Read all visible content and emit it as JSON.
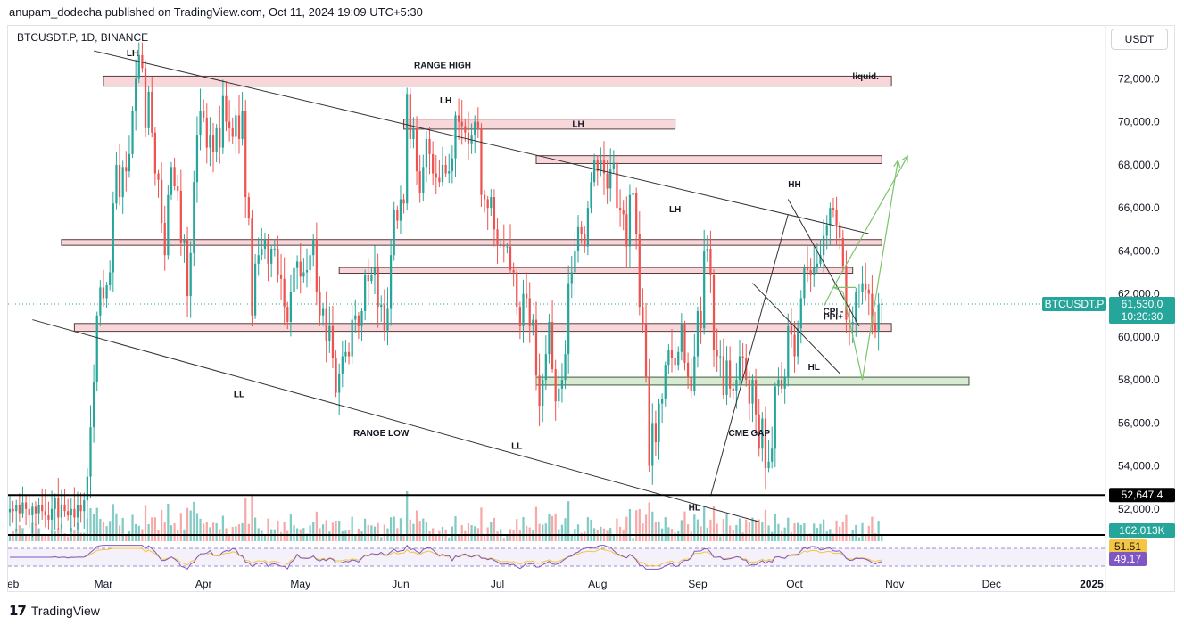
{
  "header": {
    "published_text": "anupam_dodecha published on TradingView.com, Oct 11, 2024 19:09 UTC+5:30"
  },
  "footer": {
    "brand": "TradingView",
    "brand_mark": "17"
  },
  "colors": {
    "up": "#26a69a",
    "down": "#ef5350",
    "volume_up": "#80cbc4",
    "volume_down": "#f7a9a7",
    "zone_pink_fill": "#f8d7da",
    "zone_green_fill": "#d8ead2",
    "projection_green": "#7cc36b",
    "rsi_line": "#7e57c2",
    "rsi_ma": "#f4c542"
  },
  "chart_data": {
    "type": "candlestick",
    "symbol_label": "BTCUSDT.P, 1D, BINANCE",
    "unit_label": "USDT",
    "ylim": [
      50500,
      73800
    ],
    "y_ticks": [
      52000,
      54000,
      56000,
      58000,
      60000,
      62000,
      64000,
      66000,
      68000,
      70000,
      72000
    ],
    "y_tick_labels": [
      "52,000.0",
      "54,000.0",
      "56,000.0",
      "58,000.0",
      "60,000.0",
      "62,000.0",
      "64,000.0",
      "66,000.0",
      "68,000.0",
      "70,000.0",
      "72,000.0"
    ],
    "x_labels": [
      "Feb",
      "Mar",
      "Apr",
      "May",
      "Jun",
      "Jul",
      "Aug",
      "Sep",
      "Oct",
      "Nov",
      "Dec",
      "2025"
    ],
    "x_label_dates": [
      "2024-02-01",
      "2024-03-01",
      "2024-04-01",
      "2024-05-01",
      "2024-06-01",
      "2024-07-01",
      "2024-08-01",
      "2024-09-01",
      "2024-10-01",
      "2024-11-01",
      "2024-12-01",
      "2025-01-01"
    ],
    "x_range_dates": [
      "2024-02-01",
      "2025-01-05"
    ],
    "candle_first_date": "2024-02-01",
    "closes": [
      52000,
      51900,
      52200,
      51800,
      52300,
      52000,
      51700,
      52100,
      51800,
      52200,
      51900,
      51700,
      51500,
      52000,
      52500,
      51600,
      52200,
      51900,
      51700,
      52000,
      51600,
      52200,
      51900,
      52400,
      53500,
      55800,
      57900,
      61000,
      62300,
      61800,
      62400,
      63000,
      66200,
      68000,
      66500,
      67900,
      67700,
      68500,
      70500,
      72000,
      73100,
      72500,
      69700,
      71400,
      69500,
      67600,
      67300,
      65300,
      63800,
      66600,
      67900,
      67000,
      66800,
      64400,
      64500,
      61900,
      63900,
      67200,
      69400,
      70500,
      70200,
      68800,
      69400,
      68600,
      69700,
      68800,
      71200,
      70000,
      69700,
      69300,
      70300,
      69200,
      70500,
      66500,
      65500,
      61000,
      63400,
      63800,
      64100,
      64500,
      63400,
      64100,
      64100,
      62900,
      62700,
      61400,
      60700,
      62100,
      63200,
      63500,
      62800,
      63000,
      63100,
      63800,
      64500,
      62100,
      61000,
      61300,
      59800,
      60500,
      59000,
      57400,
      58300,
      59100,
      59300,
      59100,
      60800,
      61000,
      60500,
      61200,
      62900,
      62600,
      62900,
      63200,
      61400,
      61500,
      60300,
      61300,
      63800,
      65900,
      65400,
      66400,
      66200,
      71300,
      69200,
      69700,
      67700,
      66700,
      67900,
      69200,
      68500,
      67600,
      67400,
      67200,
      68000,
      67600,
      67700,
      68300,
      70300,
      70000,
      69800,
      69500,
      69000,
      69400,
      70000,
      69700,
      66600,
      66400,
      66000,
      66500,
      65000,
      64300,
      64300,
      64200,
      64200,
      63100,
      63000,
      61400,
      60500,
      62000,
      61800,
      60500,
      60800,
      58200,
      56800,
      58000,
      59200,
      60700,
      58500,
      57000,
      57600,
      58000,
      59200,
      62500,
      63000,
      64000,
      65100,
      64800,
      64200,
      66000,
      67200,
      68200,
      67700,
      68200,
      67600,
      66900,
      67800,
      68100,
      66000,
      65900,
      65700,
      64200,
      66600,
      66700,
      64800,
      61400,
      60600,
      58100,
      54000,
      56000,
      55100,
      56900,
      57100,
      58700,
      59400,
      59000,
      58700,
      59300,
      60600,
      58800,
      58100,
      57500,
      59100,
      61200,
      60400,
      64000,
      64100,
      62900,
      59400,
      59100,
      59100,
      57300,
      58900,
      57600,
      57500,
      58000,
      59100,
      59000,
      58000,
      56900,
      58000,
      56400,
      54800,
      56200,
      53900,
      54200,
      54800,
      57700,
      58000,
      57600,
      58100,
      60500,
      60100,
      59100,
      60400,
      61800,
      63200,
      63100,
      62900,
      63200,
      63400,
      63800,
      64700,
      65200,
      66000,
      65900,
      65200,
      64600,
      63300,
      60800,
      60600,
      60700,
      62100,
      62100,
      62500,
      62200,
      62000,
      60600,
      60300,
      61500,
      61530
    ],
    "volume_max_label": "102.013K",
    "horizontal_levels": [
      52647.4,
      51300
    ],
    "level_labels": [
      "52,647.4"
    ],
    "current_price_label": "61,530.0",
    "current_symbol_label": "BTCUSDT.P",
    "countdown_label": "10:20:30",
    "current_price": 61530,
    "rsi_label": "49.17",
    "rsi_ma_label": "51.51",
    "zones": [
      {
        "kind": "pink",
        "from": "2024-03-01",
        "to": "2024-10-31",
        "low": 71700,
        "high": 72000
      },
      {
        "kind": "pink",
        "from": "2024-06-02",
        "to": "2024-08-25",
        "low": 69700,
        "high": 70000
      },
      {
        "kind": "pink",
        "from": "2024-07-13",
        "to": "2024-10-28",
        "low": 68100,
        "high": 68300
      },
      {
        "kind": "pink",
        "from": "2024-02-17",
        "to": "2024-10-28",
        "low": 64300,
        "high": 64400
      },
      {
        "kind": "pink",
        "from": "2024-05-13",
        "to": "2024-10-19",
        "low": 63000,
        "high": 63100
      },
      {
        "kind": "pink",
        "from": "2024-02-21",
        "to": "2024-10-31",
        "low": 60300,
        "high": 60500
      },
      {
        "kind": "green",
        "from": "2024-07-13",
        "to": "2024-11-24",
        "low": 57800,
        "high": 58000
      }
    ],
    "trendlines": [
      {
        "from": [
          "2024-02-27",
          73300
        ],
        "to": [
          "2024-10-24",
          64800
        ],
        "color": "#333333"
      },
      {
        "from": [
          "2024-02-08",
          60800
        ],
        "to": [
          "2024-09-20",
          51400
        ],
        "color": "#333333"
      },
      {
        "from": [
          "2024-09-05",
          52600
        ],
        "to": [
          "2024-09-29",
          65700
        ],
        "color": "#333333"
      },
      {
        "from": [
          "2024-09-29",
          66400
        ],
        "to": [
          "2024-10-21",
          60500
        ],
        "color": "#333333"
      },
      {
        "from": [
          "2024-09-18",
          62500
        ],
        "to": [
          "2024-10-15",
          58300
        ],
        "color": "#333333"
      }
    ],
    "projections": [
      {
        "points": [
          [
            "2024-10-10",
            61400
          ],
          [
            "2024-10-13",
            62300
          ],
          [
            "2024-10-16",
            62100
          ],
          [
            "2024-10-22",
            58000
          ],
          [
            "2024-11-02",
            68200
          ]
        ]
      },
      {
        "points": [
          [
            "2024-10-13",
            62300
          ],
          [
            "2024-11-05",
            68400
          ]
        ]
      },
      {
        "points": [
          [
            "2024-10-13",
            62300
          ],
          [
            "2024-10-20",
            62300
          ]
        ]
      }
    ],
    "annotations": [
      {
        "text": "LH",
        "date": "2024-03-10",
        "price": 73050
      },
      {
        "text": "RANGE HIGH",
        "date": "2024-06-14",
        "price": 72500
      },
      {
        "text": "liquid.",
        "date": "2024-10-23",
        "price": 71980
      },
      {
        "text": "LH",
        "date": "2024-06-15",
        "price": 70850
      },
      {
        "text": "LH",
        "date": "2024-07-26",
        "price": 69750
      },
      {
        "text": "HH",
        "date": "2024-10-01",
        "price": 66950
      },
      {
        "text": "LH",
        "date": "2024-08-25",
        "price": 65800
      },
      {
        "text": "CPI -",
        "date": "2024-10-13",
        "price": 61050
      },
      {
        "text": "PPI+",
        "date": "2024-10-13",
        "price": 60800
      },
      {
        "text": "HL",
        "date": "2024-10-07",
        "price": 58450
      },
      {
        "text": "LL",
        "date": "2024-04-12",
        "price": 57200
      },
      {
        "text": "RANGE LOW",
        "date": "2024-05-26",
        "price": 55400
      },
      {
        "text": "CME GAP",
        "date": "2024-09-17",
        "price": 55400
      },
      {
        "text": "LL",
        "date": "2024-07-07",
        "price": 54800
      },
      {
        "text": "HL",
        "date": "2024-08-31",
        "price": 51930
      }
    ]
  }
}
